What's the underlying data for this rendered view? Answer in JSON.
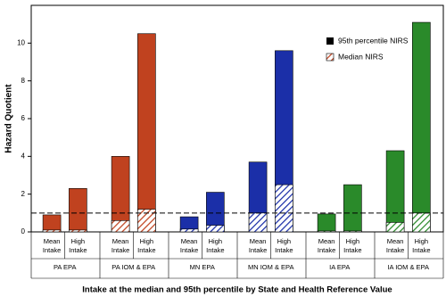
{
  "chart_data": {
    "type": "bar",
    "y_label": "Hazard Quotient",
    "x_label": "Intake at the median and 95th percentile by State and Health Reference Value",
    "groups": [
      {
        "label": "PA EPA",
        "color": "#c0421f"
      },
      {
        "label": "PA IOM & EPA",
        "color": "#c0421f"
      },
      {
        "label": "MN EPA",
        "color": "#1b2fa8"
      },
      {
        "label": "MN IOM & EPA",
        "color": "#1b2fa8"
      },
      {
        "label": "IA EPA",
        "color": "#2a8a2a"
      },
      {
        "label": "IA IOM & EPA",
        "color": "#2a8a2a"
      }
    ],
    "bar_labels": [
      [
        "Mean",
        "Intake"
      ],
      [
        "High",
        "Intake"
      ],
      [
        "Mean",
        "Intake"
      ],
      [
        "High",
        "Intake"
      ],
      [
        "Mean",
        "Intake"
      ],
      [
        "High",
        "Intake"
      ],
      [
        "Mean",
        "Intake"
      ],
      [
        "High",
        "Intake"
      ],
      [
        "Mean",
        "Intake"
      ],
      [
        "High",
        "Intake"
      ],
      [
        "Mean",
        "Intake"
      ],
      [
        "High",
        "Intake"
      ]
    ],
    "series": [
      {
        "name": "95th percentile NIRS",
        "color": "#000000",
        "values": [
          0.9,
          2.3,
          4.0,
          10.5,
          0.8,
          2.1,
          3.7,
          9.6,
          0.95,
          2.5,
          4.3,
          11.1
        ]
      },
      {
        "name": "Median NIRS",
        "color": "#000000",
        "values": [
          0.1,
          0.1,
          0.6,
          1.2,
          0.15,
          0.35,
          1.0,
          2.5,
          0.05,
          0.05,
          0.5,
          1.0
        ]
      }
    ],
    "reference_line": 1,
    "ylim": [
      0,
      12
    ],
    "yticks": [
      0,
      2,
      4,
      6,
      8,
      10
    ]
  }
}
